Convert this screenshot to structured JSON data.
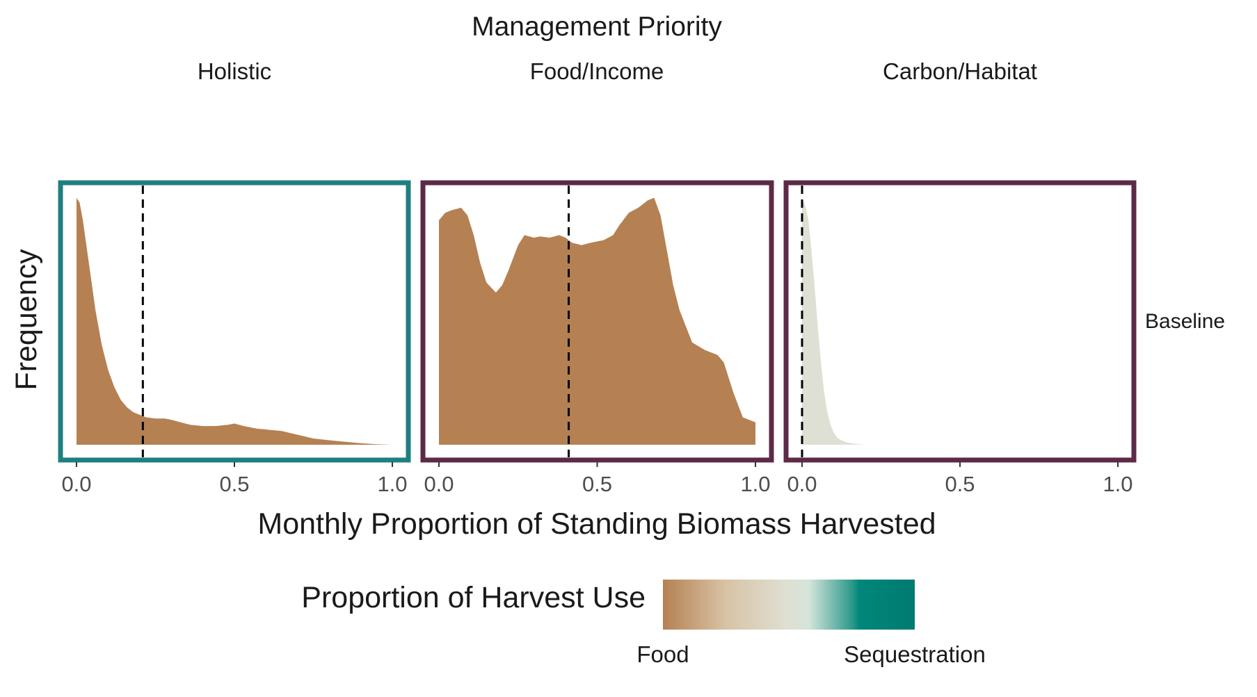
{
  "chart_data": {
    "type": "area",
    "title": "Management Priority",
    "xlabel": "Monthly Proportion of Standing Biomass Harvested",
    "ylabel": "Frequency",
    "xlim": [
      0,
      1
    ],
    "x_ticks": [
      "0.0",
      "0.5",
      "1.0"
    ],
    "row_label": "Baseline",
    "grid": false,
    "panels": [
      {
        "name": "Holistic",
        "border_color": "#1f7f80",
        "fill_color": "#b58153",
        "median": 0.21,
        "x": [
          0,
          0.01,
          0.02,
          0.04,
          0.06,
          0.08,
          0.1,
          0.12,
          0.14,
          0.16,
          0.18,
          0.2,
          0.22,
          0.25,
          0.28,
          0.3,
          0.33,
          0.36,
          0.4,
          0.44,
          0.48,
          0.5,
          0.53,
          0.57,
          0.61,
          0.65,
          0.7,
          0.75,
          0.8,
          0.85,
          0.9,
          0.95,
          1.0
        ],
        "density": [
          0.99,
          0.97,
          0.9,
          0.72,
          0.54,
          0.4,
          0.3,
          0.23,
          0.18,
          0.15,
          0.13,
          0.12,
          0.11,
          0.105,
          0.105,
          0.1,
          0.09,
          0.08,
          0.075,
          0.075,
          0.08,
          0.085,
          0.075,
          0.065,
          0.06,
          0.055,
          0.04,
          0.025,
          0.018,
          0.012,
          0.006,
          0.002,
          0
        ]
      },
      {
        "name": "Food/Income",
        "border_color": "#5c2a47",
        "fill_color": "#b58153",
        "median": 0.41,
        "x": [
          0,
          0.02,
          0.04,
          0.07,
          0.09,
          0.11,
          0.13,
          0.15,
          0.18,
          0.2,
          0.22,
          0.25,
          0.27,
          0.3,
          0.32,
          0.35,
          0.38,
          0.4,
          0.42,
          0.45,
          0.48,
          0.52,
          0.55,
          0.57,
          0.6,
          0.63,
          0.66,
          0.68,
          0.7,
          0.72,
          0.74,
          0.76,
          0.8,
          0.84,
          0.86,
          0.88,
          0.9,
          0.93,
          0.96,
          1.0
        ],
        "density": [
          0.9,
          0.93,
          0.94,
          0.95,
          0.92,
          0.84,
          0.73,
          0.65,
          0.61,
          0.64,
          0.7,
          0.8,
          0.84,
          0.83,
          0.835,
          0.83,
          0.84,
          0.83,
          0.81,
          0.8,
          0.81,
          0.82,
          0.84,
          0.88,
          0.93,
          0.95,
          0.98,
          0.99,
          0.92,
          0.78,
          0.64,
          0.54,
          0.41,
          0.38,
          0.37,
          0.36,
          0.33,
          0.21,
          0.11,
          0.09
        ]
      },
      {
        "name": "Carbon/Habitat",
        "border_color": "#5c2a47",
        "fill_color": "#dfe0d4",
        "median": 0.0,
        "x": [
          0,
          0.005,
          0.01,
          0.02,
          0.03,
          0.04,
          0.05,
          0.06,
          0.07,
          0.08,
          0.09,
          0.1,
          0.11,
          0.12,
          0.14,
          0.16,
          0.18,
          0.2
        ],
        "density": [
          0.96,
          0.98,
          0.96,
          0.9,
          0.78,
          0.63,
          0.47,
          0.33,
          0.21,
          0.13,
          0.08,
          0.05,
          0.03,
          0.02,
          0.01,
          0.005,
          0.002,
          0
        ]
      }
    ],
    "legend": {
      "title": "Proportion of Harvest Use",
      "low_label": "Food",
      "high_label": "Sequestration",
      "colors": [
        "#b58153",
        "#d8c3a5",
        "#dfe0d4",
        "#d4e5da",
        "#2f9a8c",
        "#00877a",
        "#007b70"
      ]
    }
  }
}
